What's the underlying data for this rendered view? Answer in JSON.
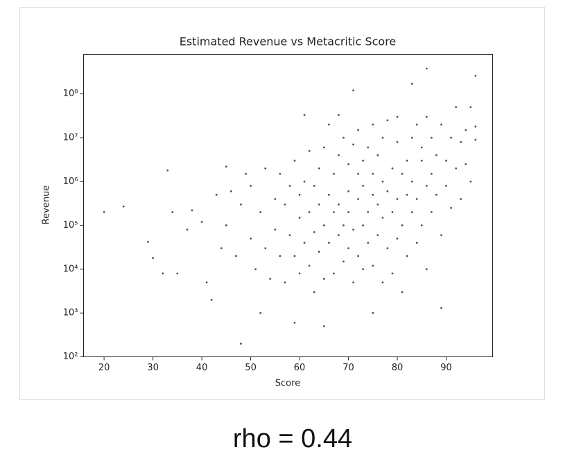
{
  "chart_data": {
    "type": "scatter",
    "title": "Estimated Revenue vs Metacritic Score",
    "xlabel": "Score",
    "ylabel": "Revenue",
    "color": "#2b5d80",
    "ylog": true,
    "xlim": [
      15.8,
      99.5
    ],
    "ylim": [
      100,
      800000000.0
    ],
    "xticks": [
      20,
      30,
      40,
      50,
      60,
      70,
      80,
      90
    ],
    "yticks": [
      {
        "value": 100,
        "label": "10²"
      },
      {
        "value": 1000,
        "label": "10³"
      },
      {
        "value": 10000,
        "label": "10⁴"
      },
      {
        "value": 100000,
        "label": "10⁵"
      },
      {
        "value": 1000000,
        "label": "10⁶"
      },
      {
        "value": 10000000,
        "label": "10⁷"
      },
      {
        "value": 100000000,
        "label": "10⁸"
      }
    ],
    "x": [
      20,
      24,
      29,
      30,
      32,
      33,
      34,
      35,
      37,
      38,
      40,
      41,
      42,
      45,
      48,
      49,
      52,
      59,
      61,
      65,
      68,
      71,
      75,
      83,
      86,
      89,
      96,
      43,
      44,
      45,
      46,
      47,
      48,
      50,
      50,
      51,
      52,
      53,
      53,
      54,
      55,
      55,
      56,
      56,
      57,
      57,
      58,
      58,
      59,
      59,
      60,
      60,
      60,
      61,
      61,
      62,
      62,
      62,
      63,
      63,
      63,
      64,
      64,
      64,
      65,
      65,
      65,
      66,
      66,
      66,
      67,
      67,
      67,
      68,
      68,
      68,
      69,
      69,
      69,
      70,
      70,
      70,
      70,
      71,
      71,
      71,
      72,
      72,
      72,
      72,
      73,
      73,
      73,
      73,
      74,
      74,
      74,
      75,
      75,
      75,
      75,
      76,
      76,
      76,
      77,
      77,
      77,
      77,
      78,
      78,
      78,
      79,
      79,
      79,
      80,
      80,
      80,
      80,
      81,
      81,
      81,
      82,
      82,
      82,
      83,
      83,
      83,
      84,
      84,
      84,
      85,
      85,
      85,
      86,
      86,
      86,
      87,
      87,
      87,
      88,
      88,
      89,
      89,
      90,
      90,
      91,
      91,
      92,
      92,
      93,
      93,
      94,
      94,
      95,
      96,
      96,
      95
    ],
    "values": [
      200000.0,
      270000.0,
      42000.0,
      18000.0,
      8000.0,
      1800000.0,
      200000.0,
      8000.0,
      80000.0,
      220000.0,
      120000.0,
      5000.0,
      2000.0,
      2200000.0,
      200,
      1500000.0,
      1000.0,
      600,
      33000000.0,
      500,
      33000000.0,
      120000000.0,
      1000.0,
      170000000.0,
      380000000.0,
      1300.0,
      260000000.0,
      500000.0,
      30000.0,
      100000.0,
      600000.0,
      20000.0,
      300000.0,
      50000.0,
      800000.0,
      10000.0,
      200000.0,
      2000000.0,
      30000.0,
      6000.0,
      400000.0,
      80000.0,
      1500000.0,
      20000.0,
      300000.0,
      5000.0,
      800000.0,
      60000.0,
      20000.0,
      3000000.0,
      150000.0,
      500000.0,
      8000.0,
      40000.0,
      1000000.0,
      200000.0,
      5000000.0,
      12000.0,
      70000.0,
      800000.0,
      3000.0,
      300000.0,
      2000000.0,
      25000.0,
      100000.0,
      6000000.0,
      6000.0,
      500000.0,
      40000.0,
      20000000.0,
      200000.0,
      1500000.0,
      8000.0,
      60000.0,
      4000000.0,
      300000.0,
      100000.0,
      10000000.0,
      15000.0,
      600000.0,
      30000.0,
      2500000.0,
      200000.0,
      80000.0,
      7000000.0,
      5000.0,
      400000.0,
      1500000.0,
      20000.0,
      15000000.0,
      100000.0,
      3000000.0,
      800000.0,
      10000.0,
      200000.0,
      6000000.0,
      40000.0,
      500000.0,
      20000000.0,
      12000.0,
      1500000.0,
      300000.0,
      4000000.0,
      60000.0,
      1000000.0,
      150000.0,
      10000000.0,
      5000.0,
      600000.0,
      30000.0,
      25000000.0,
      2000000.0,
      200000.0,
      8000.0,
      400000.0,
      8000000.0,
      50000.0,
      30000000.0,
      1500000.0,
      100000.0,
      3000.0,
      3000000.0,
      500000.0,
      20000.0,
      10000000.0,
      200000.0,
      1000000.0,
      400000.0,
      20000000.0,
      40000.0,
      3000000.0,
      100000.0,
      6000000.0,
      800000.0,
      30000000.0,
      10000.0,
      1500000.0,
      10000000.0,
      200000.0,
      4000000.0,
      500000.0,
      20000000.0,
      60000.0,
      3000000.0,
      800000.0,
      10000000.0,
      250000.0,
      50000000.0,
      2000000.0,
      400000.0,
      8000000.0,
      15000000.0,
      2500000.0,
      50000000.0,
      18000000.0,
      9000000.0,
      1000000.0
    ]
  },
  "caption": "rho = 0.44"
}
